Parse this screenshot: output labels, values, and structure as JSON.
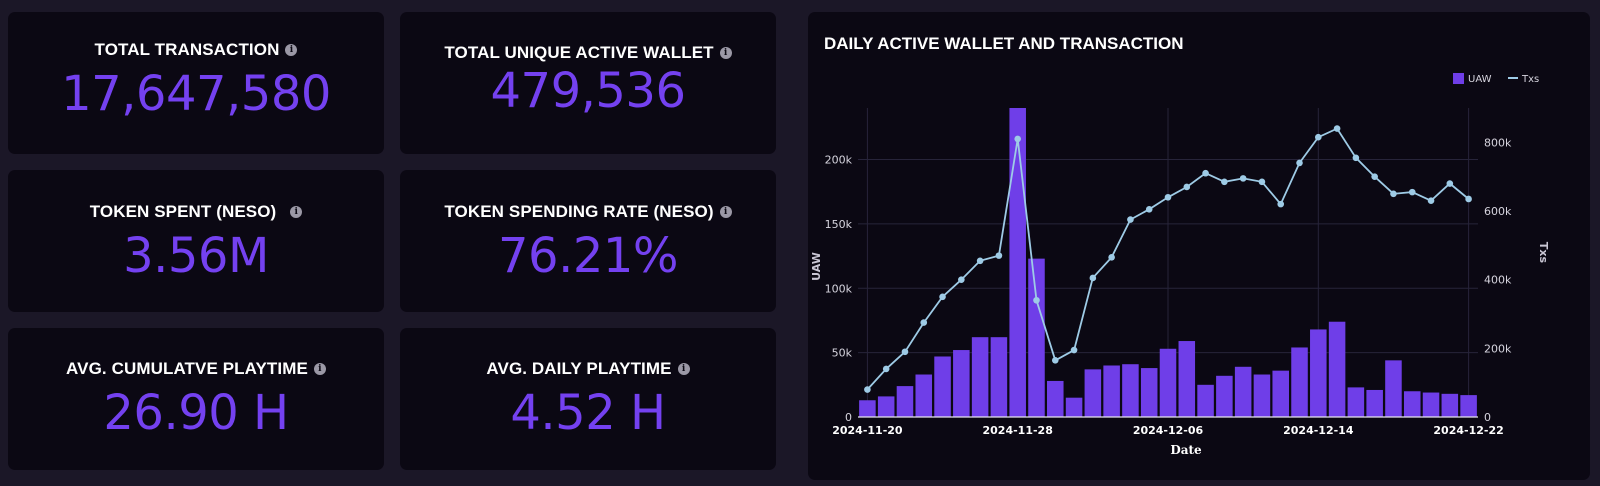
{
  "cards": [
    {
      "label": "TOTAL TRANSACTION",
      "value": "17,647,580"
    },
    {
      "label": "TOTAL UNIQUE ACTIVE WALLET",
      "value": "479,536"
    },
    {
      "label": "TOKEN SPENT (NESO)",
      "value": "3.56M"
    },
    {
      "label": "TOKEN SPENDING RATE (NESO)",
      "value": "76.21%"
    },
    {
      "label": "AVG. CUMULATVE PLAYTIME",
      "value": "26.90 H"
    },
    {
      "label": "AVG. DAILY PLAYTIME",
      "value": "4.52 H"
    }
  ],
  "info_icon": "i",
  "chart_data": {
    "type": "bar",
    "title": "DAILY ACTIVE WALLET AND TRANSACTION",
    "xlabel": "Date",
    "ylabel": "UAW",
    "y2label": "Txs",
    "ylim": [
      0,
      240000
    ],
    "y2lim": [
      0,
      900000
    ],
    "y_ticks": [
      "0",
      "50k",
      "100k",
      "150k",
      "200k"
    ],
    "y2_ticks": [
      "0",
      "200k",
      "400k",
      "600k",
      "800k"
    ],
    "x_ticks": [
      "2024-11-20",
      "2024-11-28",
      "2024-12-06",
      "2024-12-14",
      "2024-12-22"
    ],
    "grid": true,
    "legend_position": "top-right",
    "categories": [
      "2024-11-20",
      "2024-11-21",
      "2024-11-22",
      "2024-11-23",
      "2024-11-24",
      "2024-11-25",
      "2024-11-26",
      "2024-11-27",
      "2024-11-28",
      "2024-11-29",
      "2024-11-30",
      "2024-12-01",
      "2024-12-02",
      "2024-12-03",
      "2024-12-04",
      "2024-12-05",
      "2024-12-06",
      "2024-12-07",
      "2024-12-08",
      "2024-12-09",
      "2024-12-10",
      "2024-12-11",
      "2024-12-12",
      "2024-12-13",
      "2024-12-14",
      "2024-12-15",
      "2024-12-16",
      "2024-12-17",
      "2024-12-18",
      "2024-12-19",
      "2024-12-20",
      "2024-12-21",
      "2024-12-22"
    ],
    "series": [
      {
        "name": "UAW",
        "kind": "bar",
        "axis": "left",
        "color": "#6f3ee8",
        "values": [
          13000,
          16000,
          24000,
          33000,
          47000,
          52000,
          62000,
          62000,
          240000,
          123000,
          28000,
          15000,
          37000,
          40000,
          41000,
          38000,
          53000,
          59000,
          25000,
          32000,
          39000,
          33000,
          36000,
          54000,
          68000,
          74000,
          23000,
          21000,
          44000,
          20000,
          19000,
          18000,
          17000
        ]
      },
      {
        "name": "Txs",
        "kind": "line",
        "axis": "right",
        "color": "#9ecbe6",
        "values": [
          80000,
          140000,
          190000,
          275000,
          350000,
          400000,
          455000,
          470000,
          810000,
          340000,
          165000,
          195000,
          405000,
          465000,
          575000,
          605000,
          640000,
          670000,
          710000,
          685000,
          695000,
          685000,
          620000,
          740000,
          815000,
          840000,
          755000,
          700000,
          650000,
          655000,
          630000,
          680000,
          635000
        ]
      }
    ]
  }
}
